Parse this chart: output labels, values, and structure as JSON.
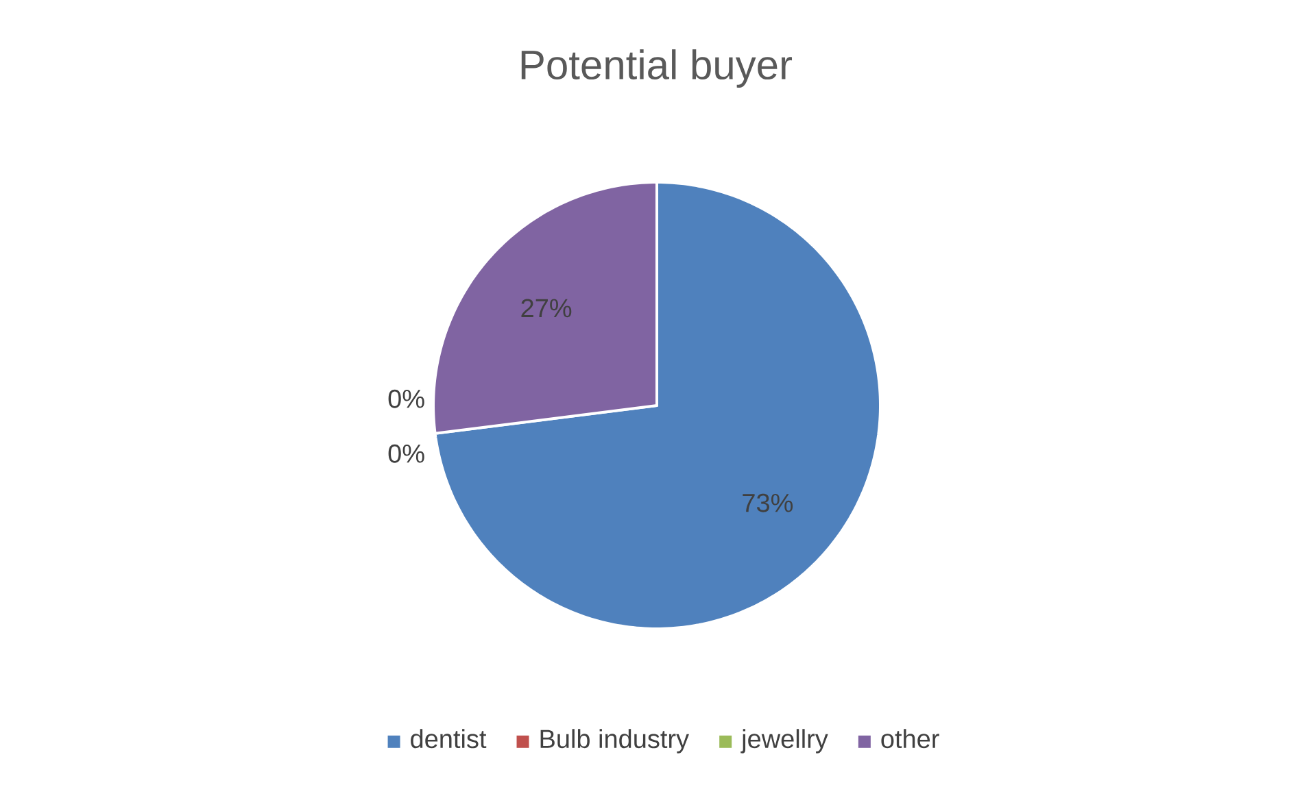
{
  "chart_data": {
    "type": "pie",
    "title": "Potential buyer",
    "categories": [
      "dentist",
      "Bulb industry",
      "jewellry",
      "other"
    ],
    "values": [
      73,
      0,
      0,
      27
    ],
    "colors": [
      "#4f81bd",
      "#c0504d",
      "#9bbb59",
      "#8064a2"
    ],
    "value_labels": [
      "73%",
      "0%",
      "0%",
      "27%"
    ],
    "legend": "bottom"
  }
}
